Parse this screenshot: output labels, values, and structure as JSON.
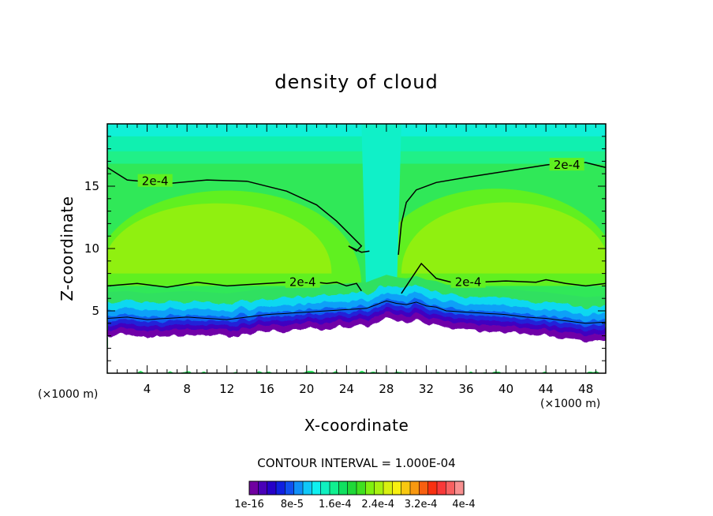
{
  "chart_data": {
    "type": "heatmap",
    "title": "density of cloud",
    "xlabel": "X-coordinate",
    "ylabel": "Z-coordinate",
    "x_unit": "(×1000 m)",
    "x_unit_right": "(×1000 m)",
    "xlim": [
      0,
      50
    ],
    "ylim": [
      0,
      20
    ],
    "x_ticks": [
      4,
      8,
      12,
      16,
      20,
      24,
      28,
      32,
      36,
      40,
      44,
      48
    ],
    "y_ticks": [
      5,
      10,
      15
    ],
    "contour_level_label": "2e-4",
    "contour_interval": "CONTOUR INTERVAL = 1.000E-04",
    "colorbar": {
      "labels": [
        "1e-16",
        "8e-5",
        "1.6e-4",
        "2.4e-4",
        "3.2e-4",
        "4e-4"
      ],
      "colors": [
        "#7000a0",
        "#4a00b8",
        "#2600c8",
        "#1020e0",
        "#1050f0",
        "#1090f8",
        "#10c8f8",
        "#10f0f0",
        "#10f0c0",
        "#10f090",
        "#10e060",
        "#20d838",
        "#40e020",
        "#80f010",
        "#a8f010",
        "#d8f010",
        "#f8f010",
        "#f8c810",
        "#f89810",
        "#f86010",
        "#f83010",
        "#f83838",
        "#f86060",
        "#f89090"
      ]
    },
    "contours": [
      {
        "label": "2e-4",
        "x": [
          0,
          2,
          6,
          10,
          14,
          18,
          21,
          23,
          24.5,
          25.5,
          25,
          24.2,
          25.5,
          26.3
        ],
        "y": [
          16.5,
          15.5,
          15.2,
          15.5,
          15.4,
          14.6,
          13.5,
          12.2,
          11.0,
          10.2,
          9.8,
          10.2,
          9.7,
          9.8
        ]
      },
      {
        "label": "2e-4",
        "x": [
          29.2,
          29.5,
          30,
          31,
          33,
          36,
          40,
          44,
          46,
          48,
          50
        ],
        "y": [
          9.5,
          12,
          13.7,
          14.7,
          15.3,
          15.7,
          16.2,
          16.7,
          16.9,
          16.9,
          16.5
        ]
      },
      {
        "label": "2e-4",
        "x": [
          0,
          3,
          6,
          9,
          12,
          14,
          16,
          18,
          20,
          22,
          23,
          24,
          25,
          25.5
        ],
        "y": [
          7.0,
          7.2,
          6.9,
          7.3,
          7.0,
          7.1,
          7.2,
          7.3,
          7.4,
          7.2,
          7.3,
          7.0,
          7.2,
          6.6
        ]
      },
      {
        "label": "2e-4",
        "x": [
          29.5,
          30.5,
          31.5,
          33,
          35,
          37,
          40,
          43,
          44,
          46,
          48,
          50
        ],
        "y": [
          6.4,
          7.6,
          8.8,
          7.6,
          7.2,
          7.3,
          7.4,
          7.3,
          7.5,
          7.2,
          7.0,
          7.2
        ]
      }
    ],
    "contour_label_positions": [
      {
        "x": 4.8,
        "y": 15.4
      },
      {
        "x": 46.1,
        "y": 16.7
      },
      {
        "x": 19.6,
        "y": 7.3
      },
      {
        "x": 36.2,
        "y": 7.3
      }
    ],
    "cloud_base": {
      "x": [
        0,
        2,
        4,
        6,
        8,
        10,
        12,
        14,
        16,
        18,
        20,
        22,
        24,
        26,
        27,
        28,
        29,
        30,
        31,
        32,
        33,
        34,
        36,
        38,
        40,
        42,
        44,
        46,
        48,
        50
      ],
      "y": [
        3.5,
        3.6,
        3.4,
        3.5,
        3.6,
        3.5,
        3.4,
        3.6,
        3.8,
        3.9,
        4.0,
        4.1,
        4.2,
        4.3,
        4.6,
        4.9,
        4.7,
        4.6,
        4.8,
        4.5,
        4.4,
        4.1,
        4.0,
        3.9,
        3.8,
        3.6,
        3.5,
        3.3,
        3.1,
        3.2
      ]
    }
  }
}
